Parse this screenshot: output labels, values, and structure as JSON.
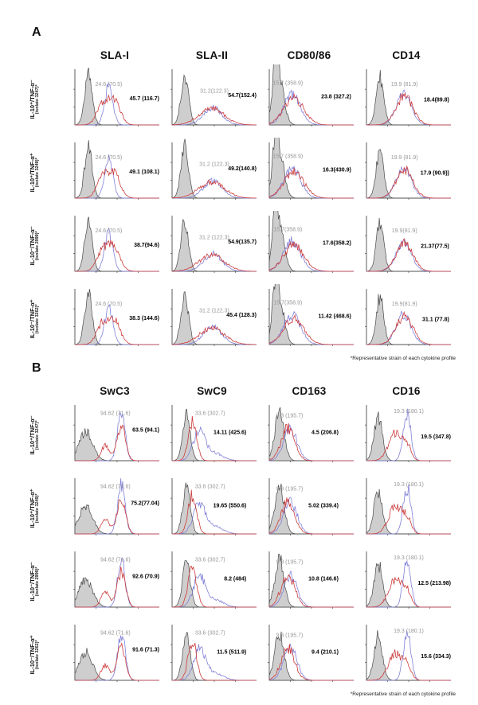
{
  "figure": {
    "footnote": "*Representative strain of each cytokine profile",
    "value_format": "percent positive (MFI)",
    "colors": {
      "control_fill": "#cbcbcb",
      "control_stroke": "#4a4a4a",
      "blue_line": "#8181d8",
      "red_line": "#cc3b3b",
      "gray_label": "#979797",
      "black_label": "#000000",
      "axis": "#333333"
    },
    "panels": [
      {
        "label": "A",
        "columns": [
          "SLA-I",
          "SLA-II",
          "CD80/86",
          "CD14"
        ],
        "rows": [
          {
            "marker": "IL-10⁺/TNF-α⁻",
            "isolate": "(isolate 3247)*"
          },
          {
            "marker": "IL-10⁺/TNF-α⁺",
            "isolate": "(isolate 3249)*"
          },
          {
            "marker": "IL-10⁻/TNF-α⁻",
            "isolate": "(isolate 2999)*"
          },
          {
            "marker": "IL-10⁻/TNF-α⁺",
            "isolate": "(isolate 3262)*"
          }
        ],
        "cells": [
          [
            {
              "gray": "24.6 (70.5)",
              "black": "45.7 (116.7)"
            },
            {
              "gray": "31.2(122.3)",
              "black": "54.7(152.4)"
            },
            {
              "gray": "15.7 (358.9)",
              "black": "23.8 (327.2)"
            },
            {
              "gray": "19.9 (81.9)",
              "black": "18.4(89.8)"
            }
          ],
          [
            {
              "gray": "24.6 (70.5)",
              "black": "49.1 (108.1)"
            },
            {
              "gray": "31.2 (122.3)",
              "black": "49.2(140.8)"
            },
            {
              "gray": "15.7 (358.9)",
              "black": "16.3(430.9)"
            },
            {
              "gray": "19.9 (81.9)",
              "black": "17.9 (90.9))"
            }
          ],
          [
            {
              "gray": "24.6 (70.5)",
              "black": "38.7(94.6)"
            },
            {
              "gray": "31.2 (122.3)",
              "black": "54.9(135.7)"
            },
            {
              "gray": "15.7(358.9)",
              "black": "17.6(358.2)"
            },
            {
              "gray": "19.9(81.9)",
              "black": "21.37(77.5)"
            }
          ],
          [
            {
              "gray": "24.6 (70.5)",
              "black": "38.3 (144.6)"
            },
            {
              "gray": "31.2 (122.3)",
              "black": "45.4 (128.3)"
            },
            {
              "gray": "15.7(358.9)",
              "black": "11.42 (468.6)"
            },
            {
              "gray": "19.9(81.9)",
              "black": "31.1 (77.8)"
            }
          ]
        ]
      },
      {
        "label": "B",
        "columns": [
          "SwC3",
          "SwC9",
          "CD163",
          "CD16"
        ],
        "rows": [
          {
            "marker": "IL-10⁺/TNF-α⁻",
            "isolate": "(isolate 3247)*"
          },
          {
            "marker": "IL-10⁺/TNF-α⁺",
            "isolate": "(isolate 3249)*"
          },
          {
            "marker": "IL-10⁻/TNF-α⁻",
            "isolate": "(isolate 2999)*"
          },
          {
            "marker": "IL-10⁻/TNF-α⁺",
            "isolate": "(isolate 3262)*"
          }
        ],
        "cells": [
          [
            {
              "gray": "94.62 (71.6)",
              "black": "63.5 (94.1)"
            },
            {
              "gray": "33.6 (302.7)",
              "black": "14.11 (425.6)"
            },
            {
              "gray": "9.3 (195.7)",
              "black": "4.5 (206.8)"
            },
            {
              "gray": "19.3 (180.1)",
              "black": "19.5 (347.8)"
            }
          ],
          [
            {
              "gray": "94.62 (71.6)",
              "black": "75.2(77.04)"
            },
            {
              "gray": "33.6 (302.7)",
              "black": "19.65 (550.6)"
            },
            {
              "gray": "9.3 (195.7)",
              "black": "5.02 (339.4)"
            },
            {
              "gray": "19.3 (180.1)",
              "black": ""
            }
          ],
          [
            {
              "gray": "94.62 (71.6)",
              "black": "92.6 (70.9)"
            },
            {
              "gray": "33.6 (302.7)",
              "black": "8.2 (484)"
            },
            {
              "gray": "9.3 (195.7)",
              "black": "10.8 (146.6)"
            },
            {
              "gray": "19.3 (180.1)",
              "black": "12.5 (213.98)"
            }
          ],
          [
            {
              "gray": "94.62 (71.6)",
              "black": "91.6 (71.3)"
            },
            {
              "gray": "33.6 (302.7)",
              "black": "11.5 (511.9)"
            },
            {
              "gray": "9.3 (195.7)",
              "black": "9.4 (210.1)"
            },
            {
              "gray": "19.3 (180.1)",
              "black": "15.6 (334.3)"
            }
          ]
        ]
      }
    ]
  },
  "chart_data": {
    "type": "heatmap",
    "subtype": "flow-cytometry-histogram-grid",
    "description": "Two panels (A, B) of 4x4 overlaid flow cytometry histograms. Shaded gray = control distribution, blue and red open traces = stained/infected distributions. Annotations give 'percent positive (MFI)': gray text = reference value (same for all rows of a column), black text = per-isolate value.",
    "panels": [
      {
        "label": "A",
        "columns": [
          "SLA-I",
          "SLA-II",
          "CD80/86",
          "CD14"
        ],
        "row_labels": [
          "IL-10⁺/TNF-α⁻ (isolate 3247)*",
          "IL-10⁺/TNF-α⁺ (isolate 3249)*",
          "IL-10⁻/TNF-α⁻ (isolate 2999)*",
          "IL-10⁻/TNF-α⁺ (isolate 3262)*"
        ],
        "gray_reference": [
          "24.6 (70.5)",
          "31.2 (122.3)",
          "15.7 (358.9)",
          "19.9 (81.9)"
        ],
        "black_values": [
          [
            "45.7 (116.7)",
            "54.7(152.4)",
            "23.8 (327.2)",
            "18.4(89.8)"
          ],
          [
            "49.1 (108.1)",
            "49.2(140.8)",
            "16.3(430.9)",
            "17.9 (90.9))"
          ],
          [
            "38.7(94.6)",
            "54.9(135.7)",
            "17.6(358.2)",
            "21.37(77.5)"
          ],
          [
            "38.3 (144.6)",
            "45.4 (128.3)",
            "11.42 (468.6)",
            "31.1 (77.8)"
          ]
        ]
      },
      {
        "label": "B",
        "columns": [
          "SwC3",
          "SwC9",
          "CD163",
          "CD16"
        ],
        "row_labels": [
          "IL-10⁺/TNF-α⁻ (isolate 3247)*",
          "IL-10⁺/TNF-α⁺ (isolate 3249)*",
          "IL-10⁻/TNF-α⁻ (isolate 2999)*",
          "IL-10⁻/TNF-α⁺ (isolate 3262)*"
        ],
        "gray_reference": [
          "94.62 (71.6)",
          "33.6 (302.7)",
          "9.3 (195.7)",
          "19.3 (180.1)"
        ],
        "black_values": [
          [
            "63.5 (94.1)",
            "14.11 (425.6)",
            "4.5 (206.8)",
            "19.5 (347.8)"
          ],
          [
            "75.2(77.04)",
            "19.65 (550.6)",
            "5.02 (339.4)",
            ""
          ],
          [
            "92.6 (70.9)",
            "8.2 (484)",
            "10.8 (146.6)",
            "12.5 (213.98)"
          ],
          [
            "91.6 (71.3)",
            "11.5 (511.9)",
            "9.4 (210.1)",
            "15.6 (334.3)"
          ]
        ]
      }
    ],
    "curve_hints": [
      [
        {
          "gray": [
            [
              0.16,
              0.045,
              0.93
            ]
          ],
          "blue": [
            [
              0.4,
              0.05,
              0.7
            ]
          ],
          "red": [
            [
              0.33,
              0.07,
              0.38
            ],
            [
              0.47,
              0.07,
              0.42
            ]
          ],
          "ann": {
            "gx": 0.4,
            "gy": 0.3,
            "kx": 1.0,
            "ky": 0.56
          }
        },
        {
          "gray": [
            [
              0.15,
              0.045,
              0.93
            ]
          ],
          "blue": [
            [
              0.48,
              0.11,
              0.32
            ]
          ],
          "red": [
            [
              0.47,
              0.15,
              0.3
            ]
          ],
          "ann": {
            "gx": 0.5,
            "gy": 0.42,
            "kx": 1.0,
            "ky": 0.5
          }
        },
        {
          "gray": [
            [
              0.11,
              0.06,
              0.9
            ],
            [
              0.07,
              0.03,
              0.55
            ]
          ],
          "blue": [
            [
              0.27,
              0.1,
              0.55
            ]
          ],
          "red": [
            [
              0.29,
              0.12,
              0.48
            ]
          ],
          "ann": {
            "gx": 0.22,
            "gy": 0.28,
            "kx": 0.97,
            "ky": 0.52
          }
        },
        {
          "gray": [
            [
              0.16,
              0.045,
              0.88
            ]
          ],
          "blue": [
            [
              0.44,
              0.09,
              0.55
            ]
          ],
          "red": [
            [
              0.45,
              0.1,
              0.52
            ]
          ],
          "ann": {
            "gx": 0.45,
            "gy": 0.3,
            "kx": 0.98,
            "ky": 0.58
          }
        }
      ],
      [
        {
          "gray": [
            [
              0.13,
              0.08,
              0.52
            ]
          ],
          "blue": [
            [
              0.55,
              0.045,
              0.88
            ]
          ],
          "red": [
            [
              0.36,
              0.05,
              0.28
            ],
            [
              0.55,
              0.05,
              0.64
            ]
          ],
          "ann": {
            "gx": 0.48,
            "gy": 0.18,
            "kx": 1.0,
            "ky": 0.48
          }
        },
        {
          "gray": [
            [
              0.17,
              0.045,
              0.85
            ]
          ],
          "blue": [
            [
              0.32,
              0.07,
              0.55
            ],
            [
              0.5,
              0.1,
              0.14
            ]
          ],
          "red": [
            [
              0.24,
              0.05,
              0.72
            ]
          ],
          "ann": {
            "gx": 0.45,
            "gy": 0.18,
            "kx": 0.88,
            "ky": 0.52
          }
        },
        {
          "gray": [
            [
              0.12,
              0.055,
              0.88
            ]
          ],
          "blue": [
            [
              0.25,
              0.08,
              0.58
            ]
          ],
          "red": [
            [
              0.22,
              0.08,
              0.6
            ]
          ],
          "ann": {
            "gx": 0.24,
            "gy": 0.22,
            "kx": 0.82,
            "ky": 0.52
          }
        },
        {
          "gray": [
            [
              0.14,
              0.05,
              0.8
            ]
          ],
          "blue": [
            [
              0.48,
              0.045,
              0.88
            ]
          ],
          "red": [
            [
              0.34,
              0.08,
              0.5
            ],
            [
              0.48,
              0.05,
              0.25
            ]
          ],
          "ann": {
            "gx": 0.5,
            "gy": 0.14,
            "kx": 1.0,
            "ky": 0.6
          }
        }
      ]
    ],
    "legend_position": "none",
    "grid": false,
    "axes": "unlabeled log-style fluorescence intensity (x) vs count (y)"
  }
}
